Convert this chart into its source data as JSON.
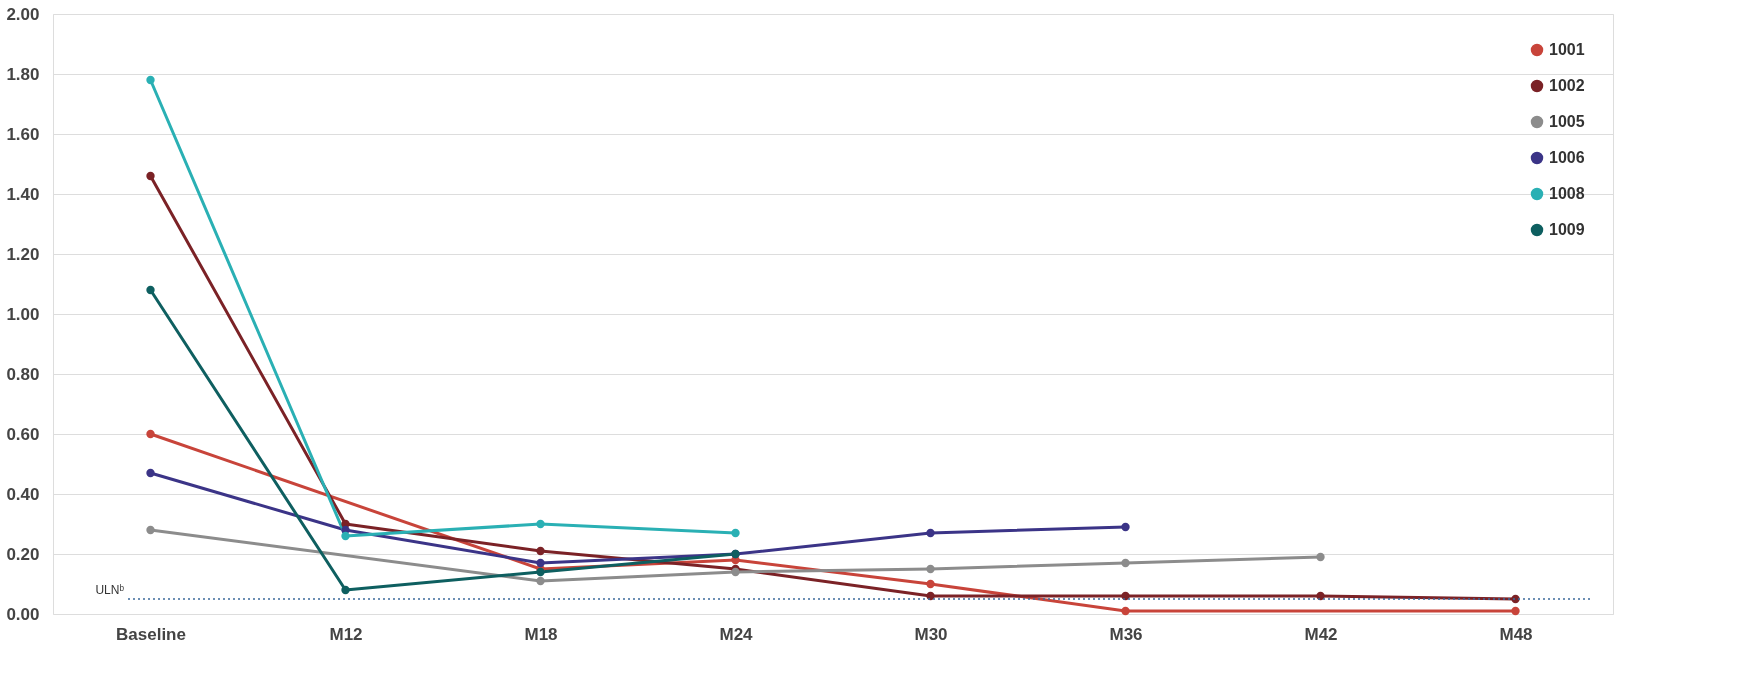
{
  "chart_data": {
    "type": "line",
    "categories": [
      "Baseline",
      "M12",
      "M18",
      "M24",
      "M30",
      "M36",
      "M42",
      "M48"
    ],
    "series": [
      {
        "name": "1001",
        "color": "#c8443a",
        "values": [
          0.6,
          null,
          0.15,
          0.18,
          0.1,
          0.01,
          null,
          0.01
        ]
      },
      {
        "name": "1002",
        "color": "#7b2226",
        "values": [
          1.46,
          0.3,
          0.21,
          0.15,
          0.06,
          0.06,
          0.06,
          0.05
        ]
      },
      {
        "name": "1005",
        "color": "#8c8c8c",
        "values": [
          0.28,
          null,
          0.11,
          0.14,
          0.15,
          0.17,
          0.19,
          null
        ]
      },
      {
        "name": "1006",
        "color": "#3b3487",
        "values": [
          0.47,
          0.28,
          0.17,
          0.2,
          0.27,
          0.29,
          null,
          null
        ]
      },
      {
        "name": "1008",
        "color": "#2ab0b4",
        "values": [
          1.78,
          0.26,
          0.3,
          0.27,
          null,
          null,
          null,
          null
        ]
      },
      {
        "name": "1009",
        "color": "#0e5f60",
        "values": [
          1.08,
          0.08,
          0.14,
          0.2,
          null,
          null,
          null,
          null
        ]
      }
    ],
    "ylim": [
      0,
      2
    ],
    "yticks": [
      {
        "value": 0,
        "label": "0.00"
      },
      {
        "value": 0.2,
        "label": "0.20"
      },
      {
        "value": 0.4,
        "label": "0.40"
      },
      {
        "value": 0.6,
        "label": "0.60"
      },
      {
        "value": 0.8,
        "label": "0.80"
      },
      {
        "value": 1.0,
        "label": "1.00"
      },
      {
        "value": 1.2,
        "label": "1.20"
      },
      {
        "value": 1.4,
        "label": "1.40"
      },
      {
        "value": 1.6,
        "label": "1.60"
      },
      {
        "value": 1.8,
        "label": "1.80"
      },
      {
        "value": 2.0,
        "label": "2.00"
      }
    ],
    "ref_lines": [
      {
        "axis": "y",
        "value": 0.05,
        "label": "ULNᵇ",
        "color": "#3b6a9a",
        "line_style": "dotted"
      }
    ],
    "grid": "y",
    "legend": "top right",
    "marker": "circle",
    "line_style": "solid"
  }
}
